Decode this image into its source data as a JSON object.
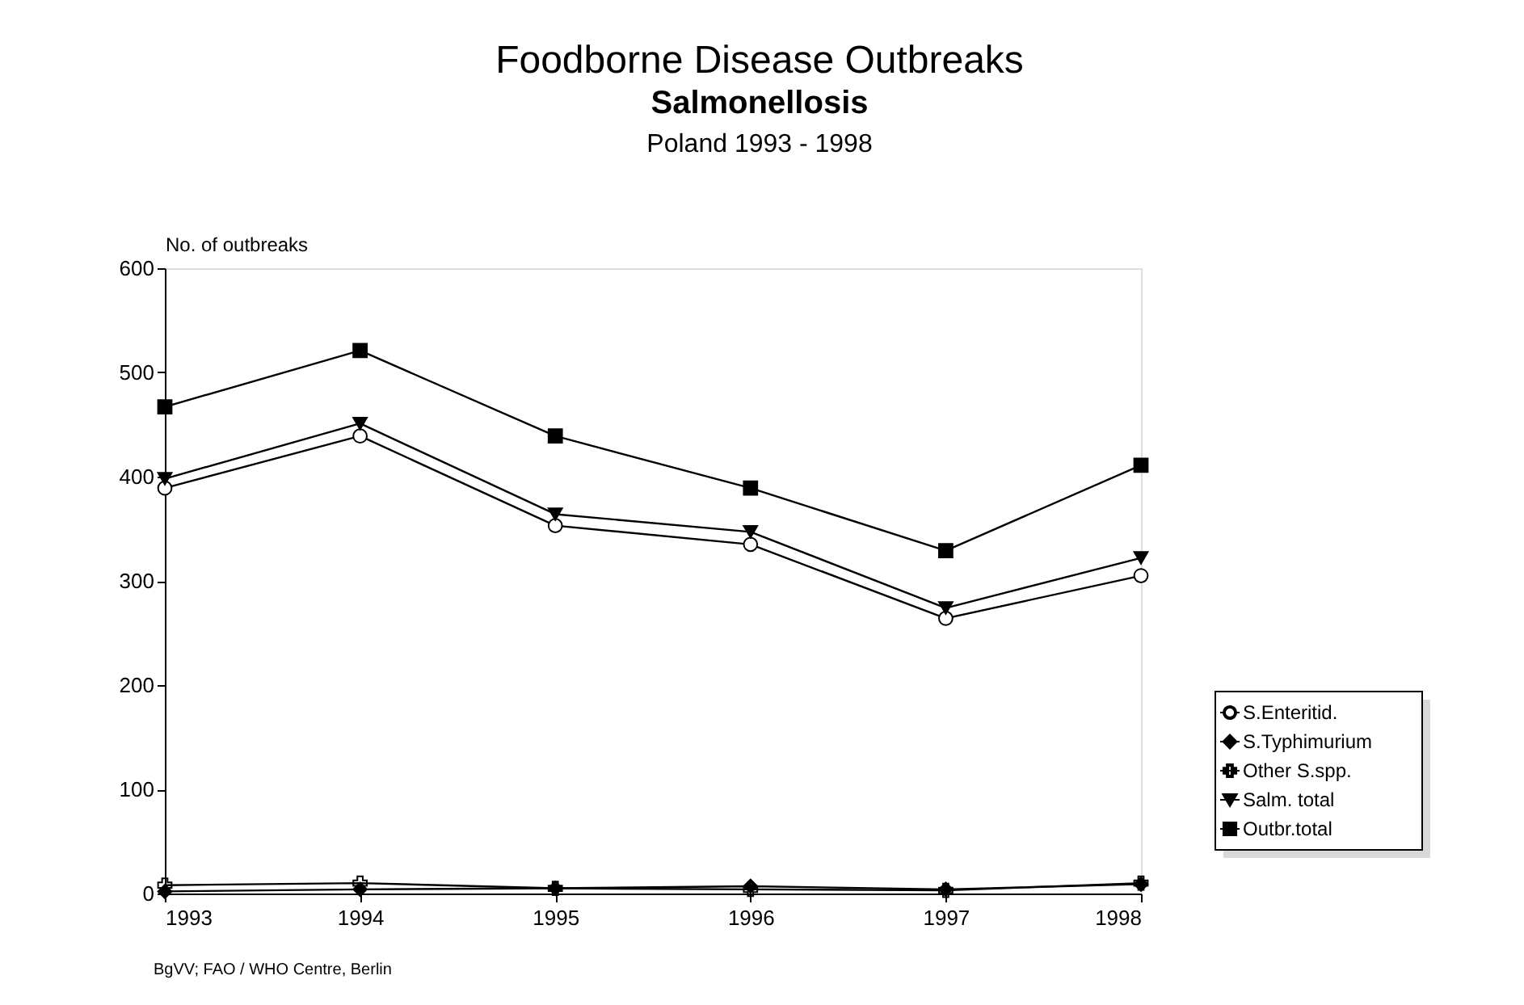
{
  "chart_data": {
    "type": "line",
    "title": "Foodborne Disease Outbreaks",
    "subtitle": "Salmonellosis",
    "annotations": [
      "Poland 1993 - 1998",
      "BgVV; FAO / WHO Centre, Berlin"
    ],
    "ylabel": "No. of outbreaks",
    "x": [
      1993,
      1994,
      1995,
      1996,
      1997,
      1998
    ],
    "xlim": [
      1993,
      1998
    ],
    "xticks": [
      1993,
      1994,
      1995,
      1996,
      1997,
      1998
    ],
    "ylim": [
      0,
      600
    ],
    "yticks": [
      0,
      100,
      200,
      300,
      400,
      500,
      600
    ],
    "grid": false,
    "legend": "right",
    "series": [
      {
        "name": "S.Enteritid.",
        "color": "#000000",
        "marker": "circle",
        "values": [
          389,
          439,
          353,
          335,
          264,
          305
        ]
      },
      {
        "name": "S.Typhimurium",
        "color": "#000000",
        "marker": "diamond",
        "values": [
          2,
          4,
          5,
          7,
          4,
          9
        ]
      },
      {
        "name": "Other S.spp.",
        "color": "#000000",
        "marker": "cross",
        "values": [
          8,
          10,
          5,
          4,
          3,
          10
        ]
      },
      {
        "name": "Salm. total",
        "color": "#000000",
        "marker": "triangle",
        "values": [
          398,
          451,
          364,
          347,
          274,
          322
        ]
      },
      {
        "name": "Outbr.total",
        "color": "#000000",
        "marker": "square",
        "values": [
          467,
          521,
          439,
          389,
          329,
          411
        ]
      }
    ]
  }
}
